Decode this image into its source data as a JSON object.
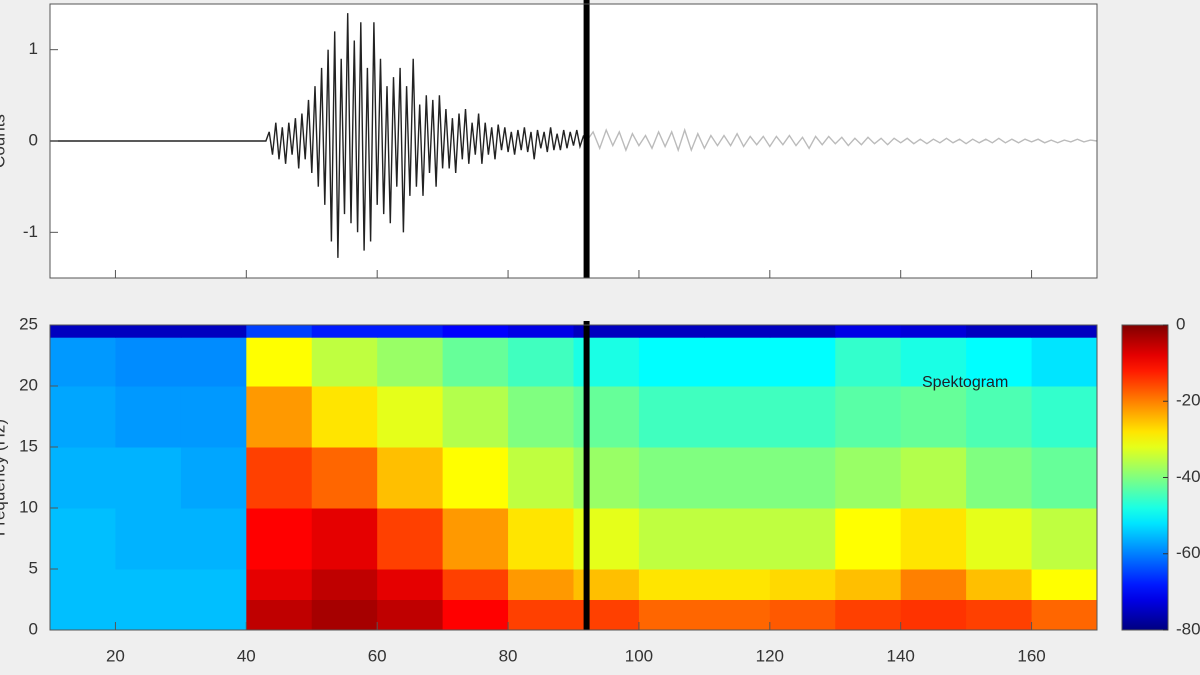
{
  "chart_data": [
    {
      "type": "line",
      "ylabel": "Counts",
      "xlim": [
        10,
        170
      ],
      "ylim": [
        -1.5,
        1.5
      ],
      "xticks": [
        20,
        40,
        60,
        80,
        100,
        120,
        140,
        160
      ],
      "yticks": [
        -1,
        0,
        1
      ],
      "cursor": 92,
      "series": [
        {
          "color": "#222222",
          "x": [
            10,
            43,
            43.5,
            44,
            44.5,
            45,
            45.5,
            46,
            46.5,
            47,
            47.5,
            48,
            48.5,
            49,
            49.5,
            50,
            50.5,
            51,
            51.5,
            52,
            52.5,
            53,
            53.5,
            54,
            54.5,
            55,
            55.5,
            56,
            56.5,
            57,
            57.5,
            58,
            58.5,
            59,
            59.5,
            60,
            60.5,
            61,
            61.5,
            62,
            62.5,
            63,
            63.5,
            64,
            64.5,
            65,
            65.5,
            66,
            66.5,
            67,
            67.5,
            68,
            68.5,
            69,
            69.5,
            70,
            70.5,
            71,
            71.5,
            72,
            72.5,
            73,
            73.5,
            74,
            74.5,
            75,
            75.5,
            76,
            76.5,
            77,
            77.5,
            78,
            78.5,
            79,
            79.5,
            80,
            80.5,
            81,
            81.5,
            82,
            82.5,
            83,
            83.5,
            84,
            84.5,
            85,
            85.5,
            86,
            86.5,
            87,
            87.5,
            88,
            88.5,
            89,
            89.5,
            90,
            90.5,
            91,
            91.5,
            92
          ],
          "values": [
            0,
            0,
            0.1,
            -0.15,
            0.2,
            -0.2,
            0.15,
            -0.25,
            0.2,
            -0.15,
            0.25,
            -0.3,
            0.3,
            -0.2,
            0.45,
            -0.35,
            0.6,
            -0.5,
            0.8,
            -0.7,
            1.0,
            -1.1,
            1.2,
            -1.28,
            0.9,
            -0.8,
            1.4,
            -0.9,
            1.1,
            -1.0,
            1.3,
            -1.2,
            0.8,
            -1.1,
            1.3,
            -0.7,
            0.9,
            -0.8,
            0.6,
            -0.9,
            0.7,
            -0.5,
            0.8,
            -1.0,
            0.6,
            -0.6,
            0.9,
            -0.5,
            0.4,
            -0.6,
            0.5,
            -0.35,
            0.45,
            -0.5,
            0.5,
            -0.3,
            0.35,
            -0.3,
            0.25,
            -0.35,
            0.3,
            -0.2,
            0.35,
            -0.25,
            0.2,
            -0.15,
            0.3,
            -0.25,
            0.2,
            -0.15,
            0.15,
            -0.2,
            0.18,
            -0.1,
            0.15,
            -0.12,
            0.1,
            -0.15,
            0.12,
            -0.1,
            0.15,
            -0.12,
            0.1,
            -0.2,
            0.12,
            -0.08,
            0.1,
            -0.12,
            0.15,
            -0.1,
            0.08,
            -0.1,
            0.12,
            -0.08,
            0.1,
            -0.05,
            0.12,
            -0.06,
            0.05,
            0
          ]
        },
        {
          "color": "#bbbbbb",
          "x": [
            92,
            93,
            94,
            95,
            96,
            97,
            98,
            99,
            100,
            101,
            102,
            103,
            104,
            105,
            106,
            107,
            108,
            109,
            110,
            111,
            112,
            113,
            114,
            115,
            116,
            117,
            118,
            119,
            120,
            121,
            122,
            123,
            124,
            125,
            126,
            127,
            128,
            129,
            130,
            131,
            132,
            133,
            134,
            135,
            136,
            137,
            138,
            139,
            140,
            141,
            142,
            143,
            144,
            145,
            146,
            147,
            148,
            149,
            150,
            151,
            152,
            153,
            154,
            155,
            156,
            157,
            158,
            159,
            160,
            161,
            162,
            163,
            164,
            165,
            166,
            167,
            168,
            169,
            170
          ],
          "values": [
            0,
            0.1,
            -0.08,
            0.12,
            -0.05,
            0.1,
            -0.1,
            0.08,
            -0.05,
            0.06,
            -0.08,
            0.1,
            -0.06,
            0.1,
            -0.1,
            0.12,
            -0.1,
            0.08,
            -0.08,
            0.06,
            -0.05,
            0.06,
            -0.05,
            0.08,
            -0.06,
            0.05,
            -0.04,
            0.05,
            -0.06,
            0.05,
            -0.04,
            0.06,
            -0.05,
            0.04,
            -0.08,
            0.05,
            -0.04,
            0.05,
            -0.03,
            0.04,
            -0.05,
            0.03,
            -0.04,
            0.04,
            -0.03,
            0.03,
            -0.04,
            0.03,
            -0.02,
            0.03,
            -0.03,
            0.02,
            -0.03,
            0.02,
            -0.02,
            0.03,
            -0.02,
            0.02,
            -0.03,
            0.02,
            -0.02,
            0.02,
            -0.02,
            0.03,
            -0.02,
            0.02,
            -0.02,
            0.02,
            -0.01,
            0.02,
            -0.02,
            0.01,
            -0.02,
            0.01,
            -0.01,
            0.02,
            -0.01,
            0.01,
            0
          ]
        }
      ]
    },
    {
      "type": "heatmap",
      "ylabel": "Frequency (Hz)",
      "annotation": "Spektogram",
      "xlim": [
        10,
        170
      ],
      "ylim": [
        0,
        25
      ],
      "cursor": 92,
      "xticks": [
        20,
        40,
        60,
        80,
        100,
        120,
        140,
        160
      ],
      "yticks": [
        0,
        5,
        10,
        15,
        20,
        25
      ],
      "x_edges": [
        10,
        20,
        30,
        40,
        50,
        60,
        70,
        80,
        90,
        100,
        110,
        120,
        130,
        140,
        150,
        160,
        170
      ],
      "y_edges": [
        0,
        2.5,
        5,
        10,
        15,
        20,
        24,
        25
      ],
      "z": [
        [
          -55,
          -55,
          -55,
          -5,
          -3,
          -5,
          -10,
          -15,
          -15,
          -18,
          -18,
          -17,
          -15,
          -14,
          -15,
          -18
        ],
        [
          -55,
          -55,
          -55,
          -8,
          -5,
          -8,
          -15,
          -22,
          -25,
          -28,
          -28,
          -27,
          -25,
          -20,
          -25,
          -30
        ],
        [
          -55,
          -56,
          -56,
          -10,
          -8,
          -15,
          -22,
          -28,
          -32,
          -35,
          -35,
          -35,
          -30,
          -28,
          -32,
          -35
        ],
        [
          -56,
          -56,
          -57,
          -15,
          -18,
          -25,
          -30,
          -35,
          -38,
          -40,
          -40,
          -40,
          -38,
          -36,
          -40,
          -42
        ],
        [
          -57,
          -58,
          -58,
          -22,
          -28,
          -32,
          -36,
          -40,
          -42,
          -45,
          -45,
          -45,
          -43,
          -42,
          -44,
          -46
        ],
        [
          -58,
          -59,
          -59,
          -30,
          -35,
          -38,
          -42,
          -45,
          -48,
          -50,
          -50,
          -50,
          -46,
          -48,
          -50,
          -52
        ],
        [
          -75,
          -75,
          -75,
          -65,
          -68,
          -68,
          -70,
          -72,
          -75,
          -75,
          -75,
          -75,
          -72,
          -73,
          -75,
          -75
        ]
      ],
      "clim": [
        -80,
        0
      ],
      "colorbar_ticks": [
        0,
        -20,
        -40,
        -60,
        -80
      ]
    }
  ]
}
